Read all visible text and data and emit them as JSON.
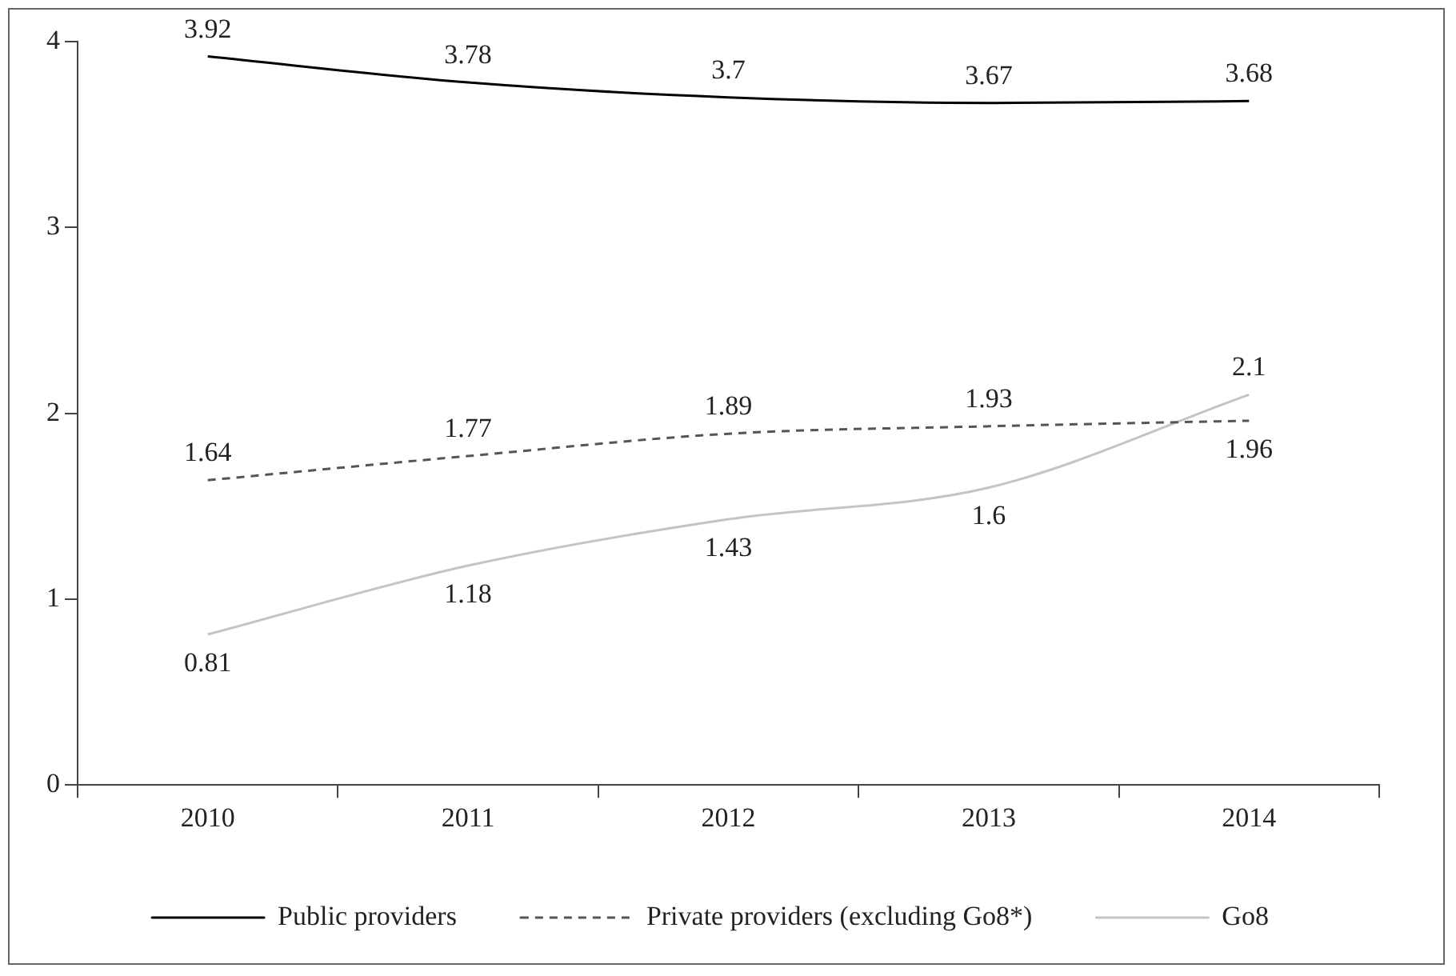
{
  "chart_data": {
    "type": "line",
    "categories": [
      "2010",
      "2011",
      "2012",
      "2013",
      "2014"
    ],
    "series": [
      {
        "name": "Public providers",
        "color": "#000000",
        "line_style": "solid",
        "values": [
          3.92,
          3.78,
          3.7,
          3.67,
          3.68
        ]
      },
      {
        "name": "Private providers (excluding Go8*)",
        "color": "#555555",
        "line_style": "dashed",
        "values": [
          1.64,
          1.77,
          1.89,
          1.93,
          1.96
        ]
      },
      {
        "name": "Go8",
        "color": "#c4c4c4",
        "line_style": "solid",
        "values": [
          0.81,
          1.18,
          1.43,
          1.6,
          2.1
        ]
      }
    ],
    "ylim": [
      0,
      4
    ],
    "yticks": [
      0,
      1,
      2,
      3,
      4
    ],
    "grid": false,
    "legend": "bottom",
    "marker": "none",
    "data_labels": true
  }
}
